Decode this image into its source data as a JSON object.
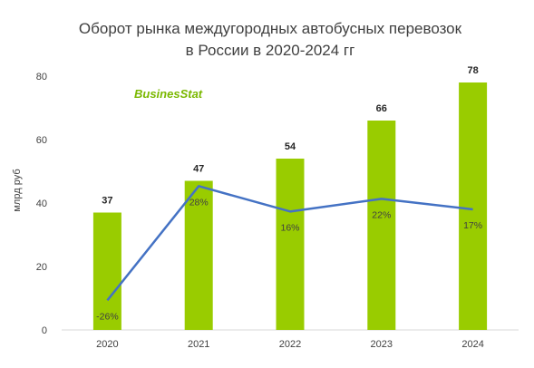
{
  "chart_data": {
    "type": "bar",
    "title_lines": [
      "Оборот рынка междугородных автобусных перевозок",
      "в России в 2020-2024 гг"
    ],
    "ylabel": "млрд  руб",
    "xlabel": "",
    "ylim": [
      0,
      80
    ],
    "yticks": [
      "0",
      "20",
      "40",
      "60",
      "80"
    ],
    "categories": [
      "2020",
      "2021",
      "2022",
      "2023",
      "2024"
    ],
    "series": [
      {
        "type": "bar",
        "values": [
          37,
          47,
          54,
          66,
          78
        ],
        "labels": [
          "37",
          "47",
          "54",
          "66",
          "78"
        ],
        "color": "#99cc00"
      },
      {
        "type": "line",
        "values": [
          -26,
          28,
          16,
          22,
          17
        ],
        "labels": [
          "-26%",
          "28%",
          "16%",
          "22%",
          "17%"
        ],
        "color": "#4472c4"
      }
    ],
    "grid": false,
    "legend": "none"
  },
  "logo_text": "BusinesStat"
}
